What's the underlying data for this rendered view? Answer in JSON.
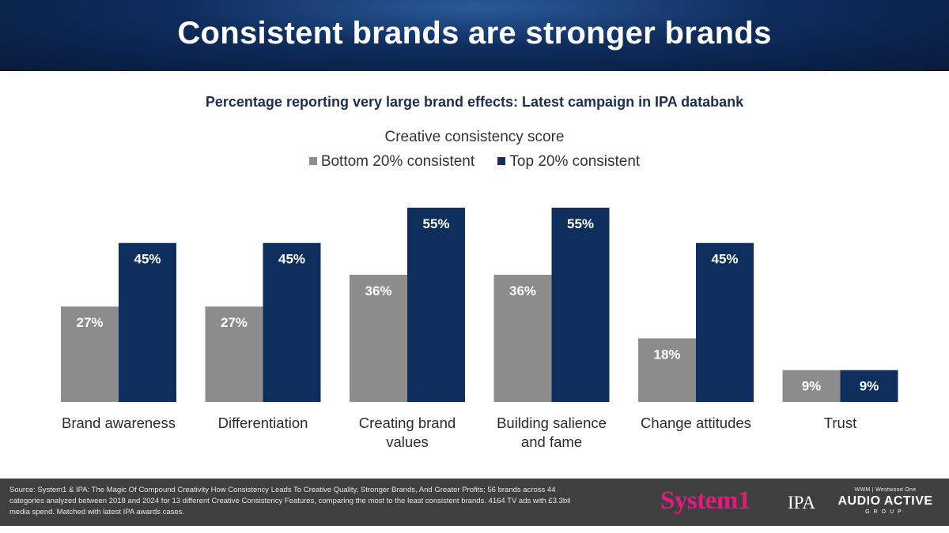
{
  "header": {
    "title": "Consistent brands are stronger brands"
  },
  "subtitle": "Percentage reporting very large brand effects:  Latest  campaign in IPA databank",
  "legend": {
    "title": "Creative consistency score",
    "items": [
      {
        "label": "Bottom 20% consistent",
        "color": "#8c8c8c"
      },
      {
        "label": "Top 20% consistent",
        "color": "#0e2f5e"
      }
    ]
  },
  "chart_data": {
    "type": "bar",
    "title": "Percentage reporting very large brand effects:  Latest  campaign in IPA databank",
    "legend_title": "Creative consistency score",
    "legend_position": "top",
    "categories": [
      [
        "Brand awareness"
      ],
      [
        "Differentiation"
      ],
      [
        "Creating brand",
        "values"
      ],
      [
        "Building salience",
        "and fame"
      ],
      [
        "Change attitudes"
      ],
      [
        "Trust"
      ]
    ],
    "series": [
      {
        "name": "Bottom 20% consistent",
        "color": "#8c8c8c",
        "values": [
          27,
          27,
          36,
          36,
          18,
          9
        ],
        "labels": [
          "27%",
          "27%",
          "36%",
          "36%",
          "18%",
          "9%"
        ]
      },
      {
        "name": "Top 20% consistent",
        "color": "#0e2f5e",
        "values": [
          45,
          45,
          55,
          55,
          45,
          9
        ],
        "labels": [
          "45%",
          "45%",
          "55%",
          "55%",
          "45%",
          "9%"
        ]
      }
    ],
    "ylim": [
      0,
      55
    ],
    "grid": false
  },
  "footer": {
    "source": "Source: System1 & IPA: The  Magic Of Compound  Creativity How Consistency Leads To Creative Quality, Stronger Brands, And Greater Profits; 56 brands  across  44 categories analyzed between 2018 and  2024 for 13 different Creative Consistency Features, comparing  the most to the least consistent brands. 4164 TV ads with £3.3bil media spend. Matched with latest IPA awards cases.",
    "logos": {
      "system1": "System1",
      "ipa": "IPA",
      "aag_top": "WWM | Westwood One",
      "aag_main": "AUDIO ACTIVE",
      "aag_sub": "GROUP"
    }
  }
}
